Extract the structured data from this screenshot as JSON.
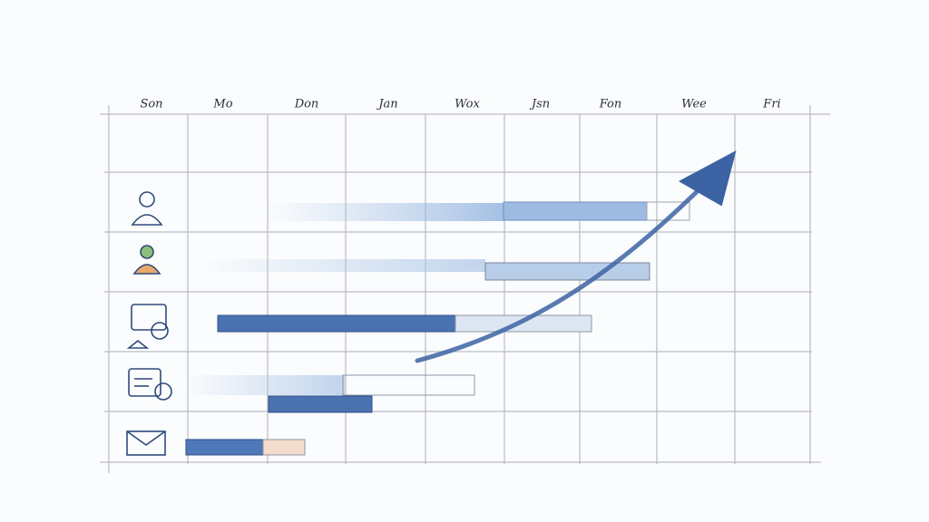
{
  "columns": [
    "Son",
    "Mo",
    "Don",
    "Jan",
    "Wox",
    "Jsn",
    "Fon",
    "Wee",
    "Fri"
  ]
}
